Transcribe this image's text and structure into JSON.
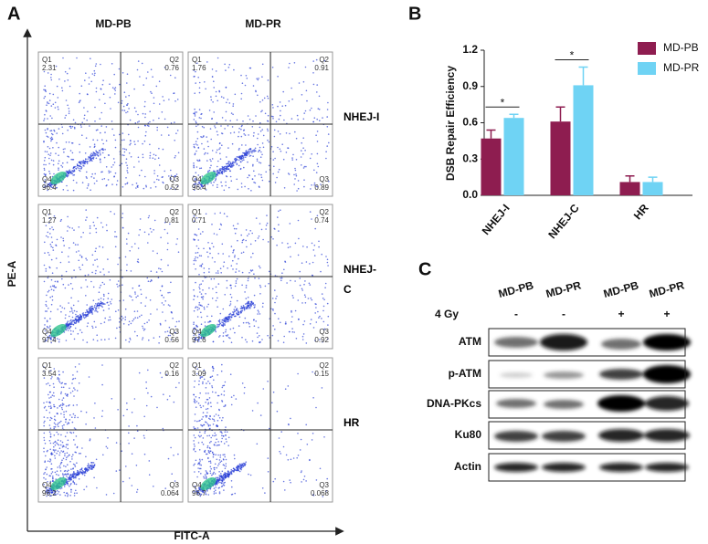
{
  "panel_a": {
    "label": "A",
    "columns": [
      "MD-PB",
      "MD-PR"
    ],
    "y_axis": "PE-A",
    "x_axis": "FITC-A",
    "rows": [
      {
        "label": "NHEJ-I",
        "plots": [
          {
            "quadrants": [
              {
                "name": "Q1",
                "value": 2.31
              },
              {
                "name": "Q2",
                "value": 0.76
              },
              {
                "name": "Q3",
                "value": 0.52
              },
              {
                "name": "Q4",
                "value": 96.4
              }
            ]
          },
          {
            "quadrants": [
              {
                "name": "Q1",
                "value": 1.76
              },
              {
                "name": "Q2",
                "value": 0.91
              },
              {
                "name": "Q3",
                "value": 0.89
              },
              {
                "name": "Q4",
                "value": 96.4
              }
            ]
          }
        ]
      },
      {
        "label": "NHEJ-C",
        "plots": [
          {
            "quadrants": [
              {
                "name": "Q1",
                "value": 1.27
              },
              {
                "name": "Q2",
                "value": 0.81
              },
              {
                "name": "Q3",
                "value": 0.56
              },
              {
                "name": "Q4",
                "value": 97.4
              }
            ]
          },
          {
            "quadrants": [
              {
                "name": "Q1",
                "value": 0.71
              },
              {
                "name": "Q2",
                "value": 0.74
              },
              {
                "name": "Q3",
                "value": 0.92
              },
              {
                "name": "Q4",
                "value": 97.6
              }
            ]
          }
        ]
      },
      {
        "label": "HR",
        "plots": [
          {
            "quadrants": [
              {
                "name": "Q1",
                "value": 3.54
              },
              {
                "name": "Q2",
                "value": 0.16
              },
              {
                "name": "Q3",
                "value": 0.064
              },
              {
                "name": "Q4",
                "value": 96.2
              }
            ]
          },
          {
            "quadrants": [
              {
                "name": "Q1",
                "value": 3.09
              },
              {
                "name": "Q2",
                "value": 0.15
              },
              {
                "name": "Q3",
                "value": 0.068
              },
              {
                "name": "Q4",
                "value": 96.7
              }
            ]
          }
        ]
      }
    ]
  },
  "chart_data": {
    "type": "bar",
    "panel_label": "B",
    "ylabel": "DSB Repair Efficiency",
    "categories": [
      "NHEJ-I",
      "NHEJ-C",
      "HR"
    ],
    "series": [
      {
        "name": "MD-PB",
        "color": "#8e1d50",
        "values": [
          0.47,
          0.61,
          0.11
        ],
        "errors": [
          0.07,
          0.12,
          0.05
        ]
      },
      {
        "name": "MD-PR",
        "color": "#6fd3f4",
        "values": [
          0.64,
          0.91,
          0.11
        ],
        "errors": [
          0.03,
          0.15,
          0.04
        ]
      }
    ],
    "ylim": [
      0,
      1.2
    ],
    "yticks": [
      {
        "value": 0,
        "label": "0.0"
      },
      0.3,
      0.6,
      0.9,
      1.2
    ],
    "legend": "upper right",
    "annotations": [
      {
        "text": "*"
      },
      {
        "text": "*"
      }
    ]
  },
  "panel_c": {
    "label": "C",
    "columns": [
      "MD-PB",
      "MD-PR",
      "MD-PB",
      "MD-PR"
    ],
    "treatment": {
      "label": "4 Gy",
      "values": [
        "-",
        "-",
        "+",
        "+"
      ]
    },
    "bands": [
      "ATM",
      "p-ATM",
      "DNA-PKcs",
      "Ku80",
      "Actin"
    ]
  }
}
